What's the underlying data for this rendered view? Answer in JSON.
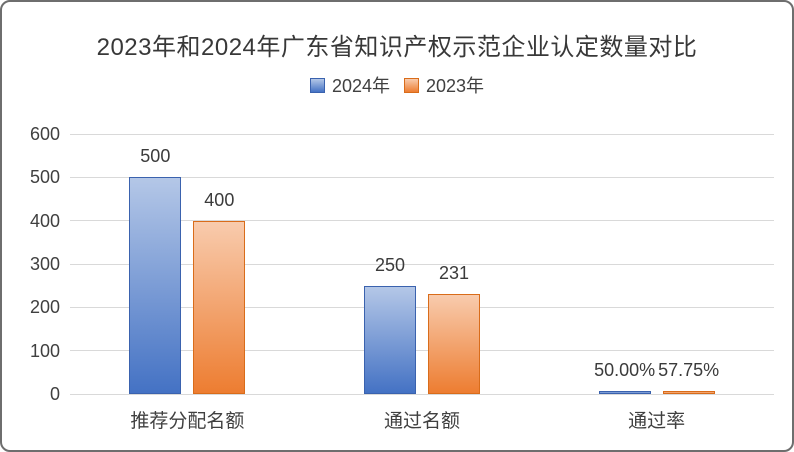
{
  "chart_data": {
    "type": "bar",
    "title": "2023年和2024年广东省知识产权示范企业认定数量对比",
    "categories": [
      "推荐分配名额",
      "通过名额",
      "通过率"
    ],
    "series": [
      {
        "name": "2024年",
        "color": "#4472c4",
        "color_light": "#b4c7e7",
        "border_color": "#3a62ae",
        "values": [
          500,
          250,
          0.5
        ],
        "labels": [
          "500",
          "250",
          "50.00%"
        ]
      },
      {
        "name": "2023年",
        "color": "#ed7d31",
        "color_light": "#f8cbad",
        "border_color": "#d96c1a",
        "values": [
          400,
          231,
          0.5775
        ],
        "labels": [
          "400",
          "231",
          "57.75%"
        ]
      }
    ],
    "ylim": [
      0,
      600
    ],
    "yticks": [
      0,
      100,
      200,
      300,
      400,
      500,
      600
    ],
    "grid": true,
    "legend_position": "top",
    "colors": {
      "gridline": "#d9d9d9",
      "text": "#404040",
      "title_text": "#383838"
    }
  }
}
